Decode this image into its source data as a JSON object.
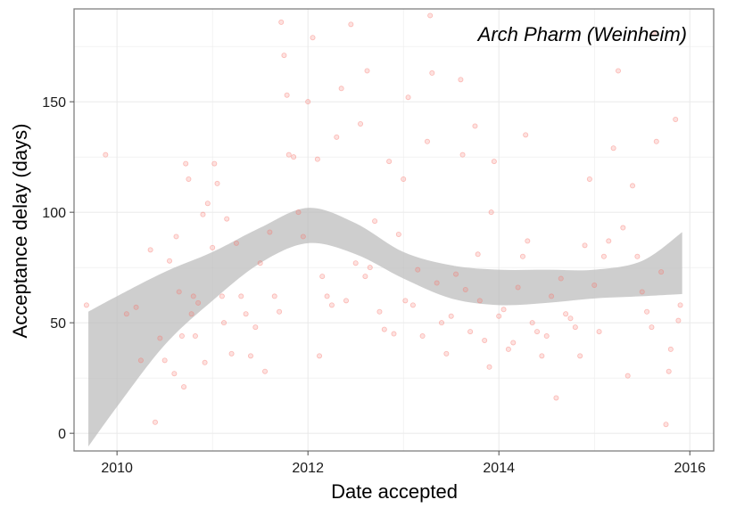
{
  "chart_data": {
    "type": "scatter",
    "title": "",
    "panel_label": "Arch Pharm (Weinheim)",
    "xlabel": "Date accepted",
    "ylabel": "Acceptance delay (days)",
    "xlim": [
      2009.55,
      2016.25
    ],
    "ylim": [
      -8,
      192
    ],
    "x_ticks": [
      2010,
      2012,
      2014,
      2016
    ],
    "x_tick_labels": [
      "2010",
      "2012",
      "2014",
      "2016"
    ],
    "y_ticks": [
      0,
      50,
      100,
      150
    ],
    "y_tick_labels": [
      "0",
      "50",
      "100",
      "150"
    ],
    "grid": true,
    "legend": "none",
    "colors": {
      "points": "#f8766d",
      "ribbon": "#bdbdbd",
      "grid": "#ebebeb",
      "border": "#7f7f7f"
    },
    "smooth_band": {
      "x": [
        2009.7,
        2010.0,
        2010.5,
        2011.0,
        2011.5,
        2012.0,
        2012.5,
        2013.0,
        2013.5,
        2014.0,
        2014.5,
        2015.0,
        2015.5,
        2015.92
      ],
      "lower": [
        -6,
        12,
        40,
        60,
        77,
        86,
        81,
        70,
        61,
        58,
        59,
        61,
        62,
        63
      ],
      "upper": [
        55,
        62,
        73,
        82,
        93,
        102,
        95,
        82,
        76,
        74,
        74,
        74,
        78,
        91
      ]
    },
    "series": [
      {
        "points": [
          [
            2009.68,
            58
          ],
          [
            2009.88,
            126
          ],
          [
            2010.1,
            54
          ],
          [
            2010.2,
            57
          ],
          [
            2010.25,
            33
          ],
          [
            2010.35,
            83
          ],
          [
            2010.4,
            5
          ],
          [
            2010.45,
            43
          ],
          [
            2010.5,
            33
          ],
          [
            2010.55,
            78
          ],
          [
            2010.6,
            27
          ],
          [
            2010.62,
            89
          ],
          [
            2010.65,
            64
          ],
          [
            2010.68,
            44
          ],
          [
            2010.7,
            21
          ],
          [
            2010.72,
            122
          ],
          [
            2010.75,
            115
          ],
          [
            2010.78,
            54
          ],
          [
            2010.8,
            62
          ],
          [
            2010.82,
            44
          ],
          [
            2010.85,
            59
          ],
          [
            2010.9,
            99
          ],
          [
            2010.92,
            32
          ],
          [
            2010.95,
            104
          ],
          [
            2011.0,
            84
          ],
          [
            2011.02,
            122
          ],
          [
            2011.05,
            113
          ],
          [
            2011.1,
            62
          ],
          [
            2011.12,
            50
          ],
          [
            2011.15,
            97
          ],
          [
            2011.2,
            36
          ],
          [
            2011.25,
            86
          ],
          [
            2011.3,
            62
          ],
          [
            2011.35,
            54
          ],
          [
            2011.4,
            35
          ],
          [
            2011.45,
            48
          ],
          [
            2011.5,
            77
          ],
          [
            2011.55,
            28
          ],
          [
            2011.6,
            91
          ],
          [
            2011.65,
            62
          ],
          [
            2011.7,
            55
          ],
          [
            2011.72,
            186
          ],
          [
            2011.75,
            171
          ],
          [
            2011.78,
            153
          ],
          [
            2011.8,
            126
          ],
          [
            2011.85,
            125
          ],
          [
            2011.9,
            100
          ],
          [
            2011.95,
            89
          ],
          [
            2012.0,
            150
          ],
          [
            2012.05,
            179
          ],
          [
            2012.1,
            124
          ],
          [
            2012.12,
            35
          ],
          [
            2012.15,
            71
          ],
          [
            2012.2,
            62
          ],
          [
            2012.25,
            58
          ],
          [
            2012.3,
            134
          ],
          [
            2012.35,
            156
          ],
          [
            2012.4,
            60
          ],
          [
            2012.45,
            185
          ],
          [
            2012.5,
            77
          ],
          [
            2012.55,
            140
          ],
          [
            2012.6,
            71
          ],
          [
            2012.62,
            164
          ],
          [
            2012.65,
            75
          ],
          [
            2012.7,
            96
          ],
          [
            2012.75,
            55
          ],
          [
            2012.8,
            47
          ],
          [
            2012.85,
            123
          ],
          [
            2012.9,
            45
          ],
          [
            2012.95,
            90
          ],
          [
            2013.0,
            115
          ],
          [
            2013.02,
            60
          ],
          [
            2013.05,
            152
          ],
          [
            2013.1,
            58
          ],
          [
            2013.15,
            74
          ],
          [
            2013.2,
            44
          ],
          [
            2013.25,
            132
          ],
          [
            2013.28,
            189
          ],
          [
            2013.3,
            163
          ],
          [
            2013.35,
            68
          ],
          [
            2013.4,
            50
          ],
          [
            2013.45,
            36
          ],
          [
            2013.5,
            53
          ],
          [
            2013.55,
            72
          ],
          [
            2013.6,
            160
          ],
          [
            2013.62,
            126
          ],
          [
            2013.65,
            65
          ],
          [
            2013.7,
            46
          ],
          [
            2013.75,
            139
          ],
          [
            2013.78,
            81
          ],
          [
            2013.8,
            60
          ],
          [
            2013.85,
            42
          ],
          [
            2013.9,
            30
          ],
          [
            2013.92,
            100
          ],
          [
            2013.95,
            123
          ],
          [
            2014.0,
            53
          ],
          [
            2014.05,
            56
          ],
          [
            2014.1,
            38
          ],
          [
            2014.15,
            41
          ],
          [
            2014.2,
            66
          ],
          [
            2014.25,
            80
          ],
          [
            2014.28,
            135
          ],
          [
            2014.3,
            87
          ],
          [
            2014.35,
            50
          ],
          [
            2014.4,
            46
          ],
          [
            2014.45,
            35
          ],
          [
            2014.5,
            44
          ],
          [
            2014.55,
            62
          ],
          [
            2014.6,
            16
          ],
          [
            2014.65,
            70
          ],
          [
            2014.7,
            54
          ],
          [
            2014.75,
            52
          ],
          [
            2014.8,
            48
          ],
          [
            2014.85,
            35
          ],
          [
            2014.9,
            85
          ],
          [
            2014.95,
            115
          ],
          [
            2015.0,
            67
          ],
          [
            2015.05,
            46
          ],
          [
            2015.1,
            80
          ],
          [
            2015.15,
            87
          ],
          [
            2015.2,
            129
          ],
          [
            2015.25,
            164
          ],
          [
            2015.3,
            93
          ],
          [
            2015.35,
            26
          ],
          [
            2015.4,
            112
          ],
          [
            2015.45,
            80
          ],
          [
            2015.5,
            64
          ],
          [
            2015.55,
            55
          ],
          [
            2015.6,
            48
          ],
          [
            2015.62,
            181
          ],
          [
            2015.65,
            132
          ],
          [
            2015.7,
            73
          ],
          [
            2015.75,
            4
          ],
          [
            2015.78,
            28
          ],
          [
            2015.8,
            38
          ],
          [
            2015.85,
            142
          ],
          [
            2015.88,
            51
          ],
          [
            2015.9,
            58
          ]
        ]
      }
    ]
  }
}
